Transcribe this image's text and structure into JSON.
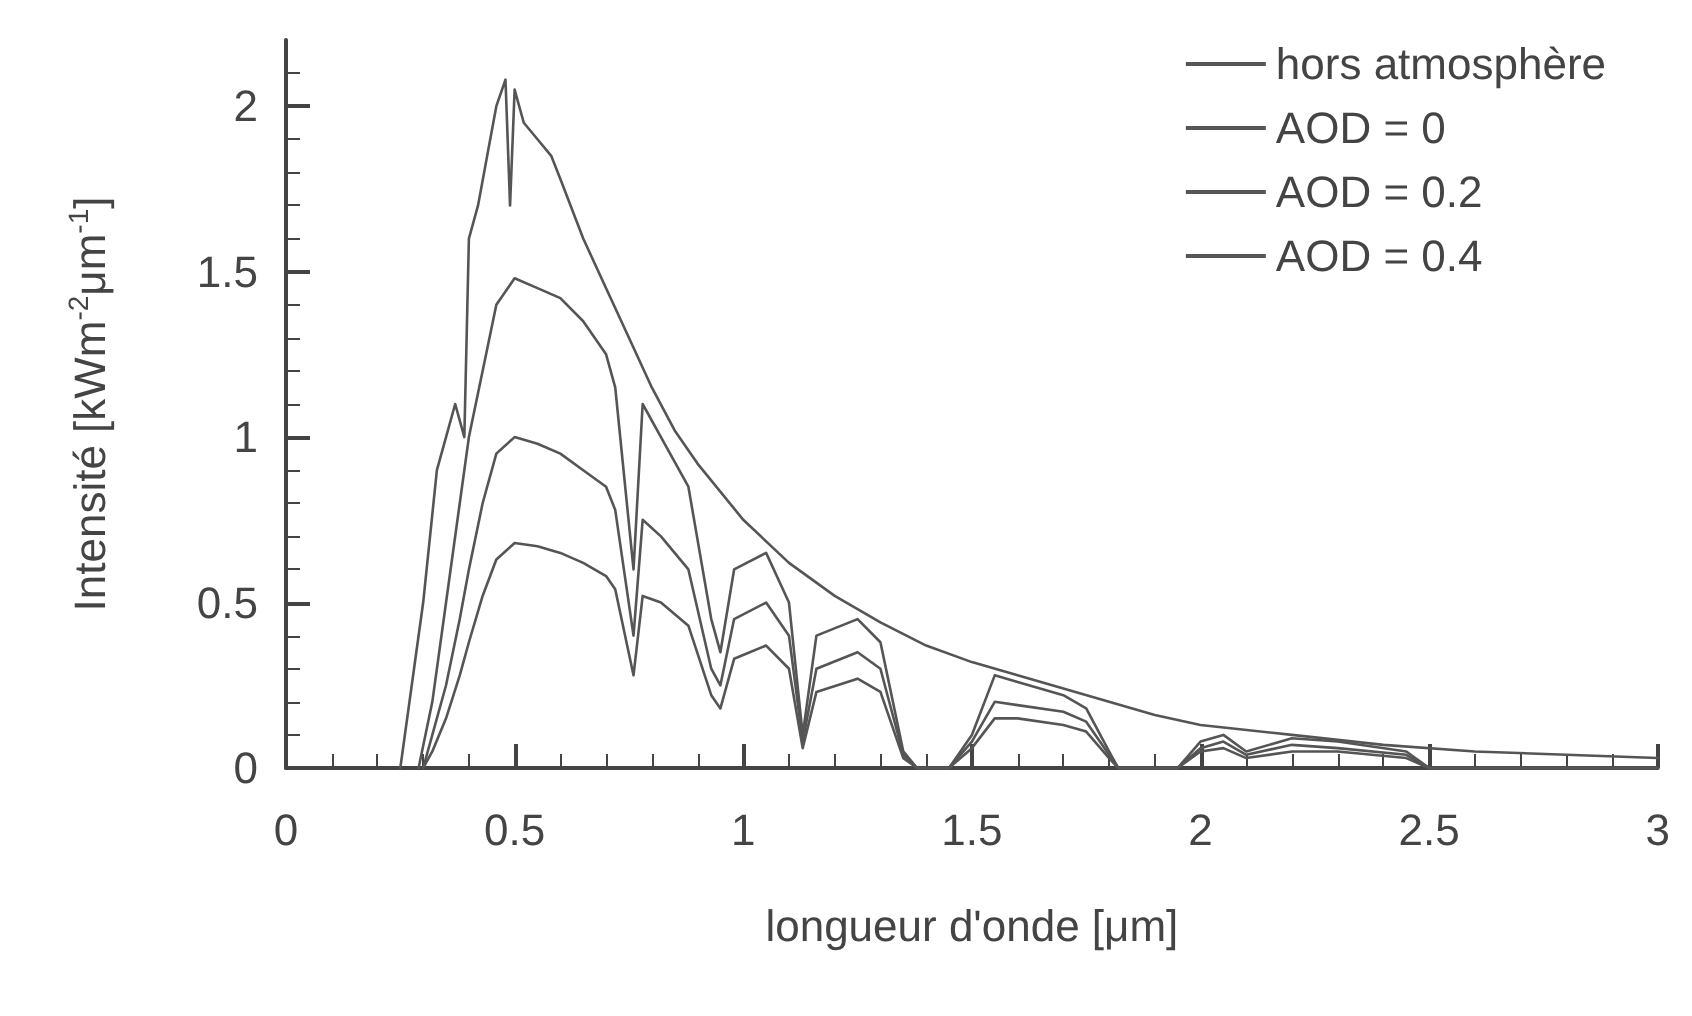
{
  "chart_data": {
    "type": "line",
    "xlabel": "longueur d'onde [μm]",
    "ylabel": "Intensité [kWm$^{-2}$μm$^{-1}$]",
    "xlim": [
      0,
      3
    ],
    "xticks": [
      0,
      0.5,
      1,
      1.5,
      2,
      2.5,
      3
    ],
    "ylim": [
      0,
      2.2
    ],
    "yticks": [
      0,
      0.5,
      1,
      1.5,
      2
    ],
    "grid": false,
    "legend": "top right",
    "marker": "none",
    "line_style": "solid",
    "series": [
      {
        "name": "hors atmosphère",
        "color": "#555555",
        "x": [
          0.25,
          0.28,
          0.3,
          0.33,
          0.35,
          0.37,
          0.39,
          0.4,
          0.42,
          0.44,
          0.46,
          0.48,
          0.49,
          0.5,
          0.52,
          0.55,
          0.58,
          0.6,
          0.65,
          0.7,
          0.75,
          0.8,
          0.85,
          0.9,
          1.0,
          1.1,
          1.2,
          1.3,
          1.4,
          1.5,
          1.6,
          1.7,
          1.8,
          1.9,
          2.0,
          2.2,
          2.4,
          2.6,
          2.8,
          3.0
        ],
        "values": [
          0,
          0.3,
          0.5,
          0.9,
          1.0,
          1.1,
          1.0,
          1.6,
          1.7,
          1.85,
          2.0,
          2.08,
          1.7,
          2.05,
          1.95,
          1.9,
          1.85,
          1.78,
          1.6,
          1.45,
          1.3,
          1.15,
          1.02,
          0.92,
          0.75,
          0.62,
          0.52,
          0.44,
          0.37,
          0.32,
          0.28,
          0.24,
          0.2,
          0.16,
          0.13,
          0.1,
          0.07,
          0.05,
          0.04,
          0.03
        ]
      },
      {
        "name": "AOD = 0",
        "color": "#555555",
        "x": [
          0.29,
          0.32,
          0.35,
          0.38,
          0.4,
          0.43,
          0.46,
          0.5,
          0.55,
          0.6,
          0.65,
          0.7,
          0.72,
          0.76,
          0.78,
          0.82,
          0.88,
          0.93,
          0.95,
          0.98,
          1.05,
          1.1,
          1.13,
          1.16,
          1.25,
          1.3,
          1.35,
          1.38,
          1.45,
          1.5,
          1.55,
          1.6,
          1.7,
          1.75,
          1.8,
          1.82,
          1.95,
          2.0,
          2.05,
          2.1,
          2.2,
          2.3,
          2.45,
          2.5,
          3.0
        ],
        "values": [
          0,
          0.2,
          0.5,
          0.8,
          1.0,
          1.2,
          1.4,
          1.48,
          1.45,
          1.42,
          1.35,
          1.25,
          1.15,
          0.6,
          1.1,
          1.0,
          0.85,
          0.45,
          0.35,
          0.6,
          0.65,
          0.5,
          0.1,
          0.4,
          0.45,
          0.38,
          0.05,
          0,
          0,
          0.1,
          0.28,
          0.26,
          0.22,
          0.18,
          0.05,
          0,
          0,
          0.08,
          0.1,
          0.05,
          0.09,
          0.08,
          0.05,
          0,
          0
        ]
      },
      {
        "name": "AOD = 0.2",
        "color": "#555555",
        "x": [
          0.3,
          0.32,
          0.35,
          0.38,
          0.4,
          0.43,
          0.46,
          0.5,
          0.55,
          0.6,
          0.65,
          0.7,
          0.72,
          0.76,
          0.78,
          0.82,
          0.88,
          0.93,
          0.95,
          0.98,
          1.05,
          1.1,
          1.13,
          1.16,
          1.25,
          1.3,
          1.35,
          1.38,
          1.45,
          1.5,
          1.55,
          1.6,
          1.7,
          1.75,
          1.8,
          1.82,
          1.95,
          2.0,
          2.05,
          2.1,
          2.2,
          2.3,
          2.45,
          2.5,
          3.0
        ],
        "values": [
          0,
          0.1,
          0.25,
          0.45,
          0.6,
          0.8,
          0.95,
          1.0,
          0.98,
          0.95,
          0.9,
          0.85,
          0.78,
          0.4,
          0.75,
          0.7,
          0.6,
          0.3,
          0.25,
          0.45,
          0.5,
          0.4,
          0.08,
          0.3,
          0.35,
          0.3,
          0.04,
          0,
          0,
          0.08,
          0.2,
          0.19,
          0.17,
          0.14,
          0.04,
          0,
          0,
          0.06,
          0.08,
          0.04,
          0.07,
          0.06,
          0.04,
          0,
          0
        ]
      },
      {
        "name": "AOD = 0.4",
        "color": "#555555",
        "x": [
          0.3,
          0.32,
          0.35,
          0.38,
          0.4,
          0.43,
          0.46,
          0.5,
          0.55,
          0.6,
          0.65,
          0.7,
          0.72,
          0.76,
          0.78,
          0.82,
          0.88,
          0.93,
          0.95,
          0.98,
          1.05,
          1.1,
          1.13,
          1.16,
          1.25,
          1.3,
          1.35,
          1.38,
          1.45,
          1.5,
          1.55,
          1.6,
          1.7,
          1.75,
          1.8,
          1.82,
          1.95,
          2.0,
          2.05,
          2.1,
          2.2,
          2.3,
          2.45,
          2.5,
          3.0
        ],
        "values": [
          0,
          0.05,
          0.15,
          0.28,
          0.38,
          0.52,
          0.63,
          0.68,
          0.67,
          0.65,
          0.62,
          0.58,
          0.54,
          0.28,
          0.52,
          0.5,
          0.43,
          0.22,
          0.18,
          0.33,
          0.37,
          0.3,
          0.06,
          0.23,
          0.27,
          0.23,
          0.03,
          0,
          0,
          0.06,
          0.15,
          0.15,
          0.13,
          0.11,
          0.03,
          0,
          0,
          0.05,
          0.06,
          0.03,
          0.05,
          0.05,
          0.03,
          0,
          0
        ]
      }
    ]
  }
}
